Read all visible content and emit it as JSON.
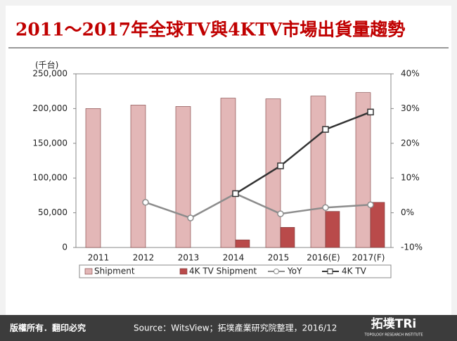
{
  "chart_data": {
    "type": "bar-line",
    "title": "2011～2017年全球TV與4KTV市場出貨量趨勢",
    "ylabel": "(千台)",
    "categories": [
      "2011",
      "2012",
      "2013",
      "2014",
      "2015",
      "2016(E)",
      "2017(F)"
    ],
    "series": [
      {
        "name": "Shipment",
        "kind": "bar",
        "color": "#e3b7b7",
        "values": [
          200000,
          205000,
          203000,
          215000,
          214000,
          218000,
          223000
        ]
      },
      {
        "name": "4K TV Shipment",
        "kind": "bar",
        "color": "#b94a4a",
        "values": [
          null,
          null,
          null,
          11000,
          29000,
          52000,
          65000
        ]
      },
      {
        "name": "YoY",
        "kind": "line",
        "axis": "y2",
        "color": "#8c8c8c",
        "marker": "circle",
        "values": [
          null,
          3,
          -1.5,
          5.5,
          -0.3,
          1.5,
          2.3
        ]
      },
      {
        "name": "4K TV",
        "kind": "line",
        "axis": "y2",
        "color": "#333333",
        "marker": "square",
        "values": [
          null,
          null,
          null,
          5.5,
          13.5,
          24,
          29
        ]
      }
    ],
    "ylim": [
      0,
      250000
    ],
    "yticks": [
      0,
      {
        "value": 50000,
        "label": "50,000"
      },
      {
        "value": 100000,
        "label": "100,000"
      },
      {
        "value": 150000,
        "label": "150,000"
      },
      {
        "value": 200000,
        "label": "200,000"
      },
      {
        "value": 250000,
        "label": "250,000"
      }
    ],
    "y2lim": [
      -10,
      40
    ],
    "y2ticks": [
      {
        "value": -10,
        "label": "-10%"
      },
      {
        "value": 0,
        "label": "0%"
      },
      {
        "value": 10,
        "label": "10%"
      },
      {
        "value": 20,
        "label": "20%"
      },
      {
        "value": 30,
        "label": "30%"
      },
      {
        "value": 40,
        "label": "40%"
      }
    ],
    "legend": "bottom"
  },
  "footer": {
    "copyright": "版權所有．翻印必究",
    "source": "Source：WitsView；拓墣產業研究院整理，2016/12",
    "logo": "拓墣TRi",
    "logo_sub": "TOPOLOGY RESEARCH INSTITUTE"
  }
}
